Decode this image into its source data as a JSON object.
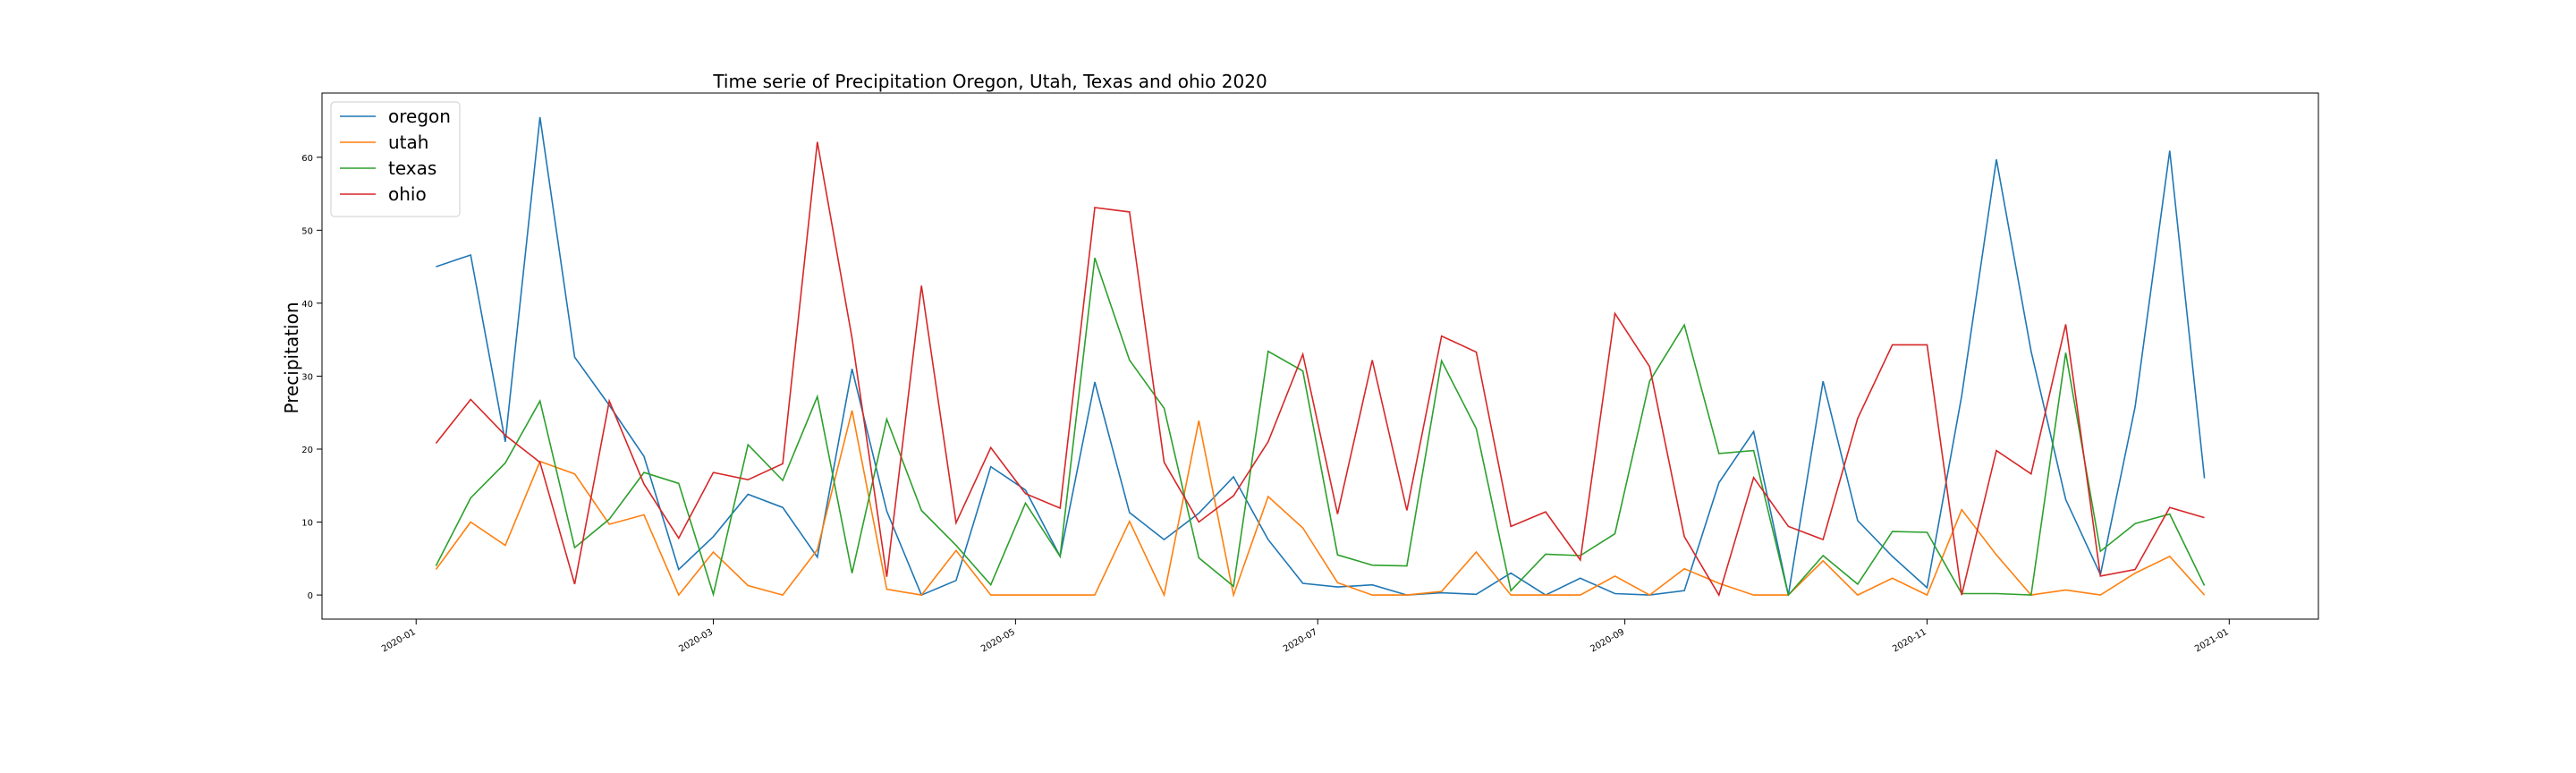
{
  "chart_data": {
    "type": "line",
    "title": "Time serie of Precipitation Oregon, Utah, Texas and ohio 2020",
    "xlabel": "",
    "ylabel": "Precipitation",
    "x": [
      "2020-01-05",
      "2020-01-12",
      "2020-01-19",
      "2020-01-26",
      "2020-02-02",
      "2020-02-09",
      "2020-02-16",
      "2020-02-23",
      "2020-03-01",
      "2020-03-08",
      "2020-03-15",
      "2020-03-22",
      "2020-03-29",
      "2020-04-05",
      "2020-04-12",
      "2020-04-19",
      "2020-04-26",
      "2020-05-03",
      "2020-05-10",
      "2020-05-17",
      "2020-05-24",
      "2020-05-31",
      "2020-06-07",
      "2020-06-14",
      "2020-06-21",
      "2020-06-28",
      "2020-07-05",
      "2020-07-12",
      "2020-07-19",
      "2020-07-26",
      "2020-08-02",
      "2020-08-09",
      "2020-08-16",
      "2020-08-23",
      "2020-08-30",
      "2020-09-06",
      "2020-09-13",
      "2020-09-20",
      "2020-09-27",
      "2020-10-04",
      "2020-10-11",
      "2020-10-18",
      "2020-10-25",
      "2020-11-01",
      "2020-11-08",
      "2020-11-15",
      "2020-11-22",
      "2020-11-29",
      "2020-12-06",
      "2020-12-13",
      "2020-12-20",
      "2020-12-27"
    ],
    "series": [
      {
        "name": "oregon",
        "color": "#1f77b4",
        "values": [
          45,
          46.6,
          21,
          65.5,
          32.6,
          26,
          19,
          3.5,
          8,
          13.8,
          12,
          5.2,
          31,
          11.5,
          0,
          2,
          17.6,
          14.4,
          5.3,
          29.2,
          11.3,
          7.6,
          11.2,
          16.2,
          7.6,
          1.6,
          1.1,
          1.4,
          0,
          0.3,
          0.1,
          3,
          0,
          2.3,
          0.2,
          0,
          0.6,
          15.4,
          22.4,
          0,
          29.3,
          10.2,
          5.3,
          1,
          27.3,
          59.7,
          33.4,
          13.1,
          2.8,
          25.8,
          60.9,
          16
        ]
      },
      {
        "name": "utah",
        "color": "#ff7f0e",
        "values": [
          3.5,
          10,
          6.8,
          18.3,
          16.6,
          9.7,
          11,
          0,
          5.9,
          1.3,
          0,
          6.2,
          25.3,
          0.8,
          0,
          6.1,
          0,
          0,
          0,
          0,
          10.1,
          0,
          23.9,
          0,
          13.5,
          9.2,
          1.7,
          0,
          0,
          0.5,
          5.9,
          0,
          0,
          0,
          2.6,
          0,
          3.6,
          1.6,
          0,
          0,
          4.7,
          0,
          2.3,
          0,
          11.7,
          5.5,
          0,
          0.7,
          0,
          3,
          5.3,
          0
        ]
      },
      {
        "name": "texas",
        "color": "#2ca02c",
        "values": [
          4,
          13.3,
          18.1,
          26.6,
          6.5,
          10.4,
          16.8,
          15.3,
          0.1,
          20.6,
          15.7,
          27.2,
          3,
          24.1,
          11.6,
          6.8,
          1.4,
          12.6,
          5.3,
          46.2,
          32.2,
          25.6,
          5.1,
          1.2,
          33.4,
          30.7,
          5.5,
          4.1,
          4,
          32.1,
          22.8,
          0.6,
          5.6,
          5.4,
          8.4,
          29.3,
          37,
          19.4,
          19.8,
          0,
          5.4,
          1.5,
          8.7,
          8.6,
          0.2,
          0.2,
          0,
          33.2,
          6,
          9.8,
          11.1,
          1.3
        ]
      },
      {
        "name": "ohio",
        "color": "#d62728",
        "values": [
          20.8,
          26.8,
          21.9,
          18.2,
          1.5,
          26.6,
          15.2,
          7.8,
          16.8,
          15.8,
          18,
          62.1,
          35.2,
          2.5,
          42.4,
          9.9,
          20.2,
          13.9,
          11.9,
          53.1,
          52.5,
          18.2,
          10,
          13.6,
          21,
          33,
          11.1,
          32.2,
          11.6,
          35.5,
          33.3,
          9.4,
          11.4,
          4.8,
          38.6,
          31.3,
          8,
          0,
          16.1,
          9.4,
          7.6,
          24.2,
          34.3,
          34.3,
          0,
          19.8,
          16.6,
          37.1,
          2.6,
          3.5,
          12,
          10.6
        ]
      }
    ],
    "xlim": [
      "2019-12-13",
      "2021-01-19"
    ],
    "ylim": [
      -3.3,
      68.8
    ],
    "x_ticks": [
      "2020-01",
      "2020-03",
      "2020-05",
      "2020-07",
      "2020-09",
      "2020-11",
      "2021-01"
    ],
    "y_ticks": [
      0,
      10,
      20,
      30,
      40,
      50,
      60
    ],
    "grid": false,
    "legend_position": "top-left"
  }
}
